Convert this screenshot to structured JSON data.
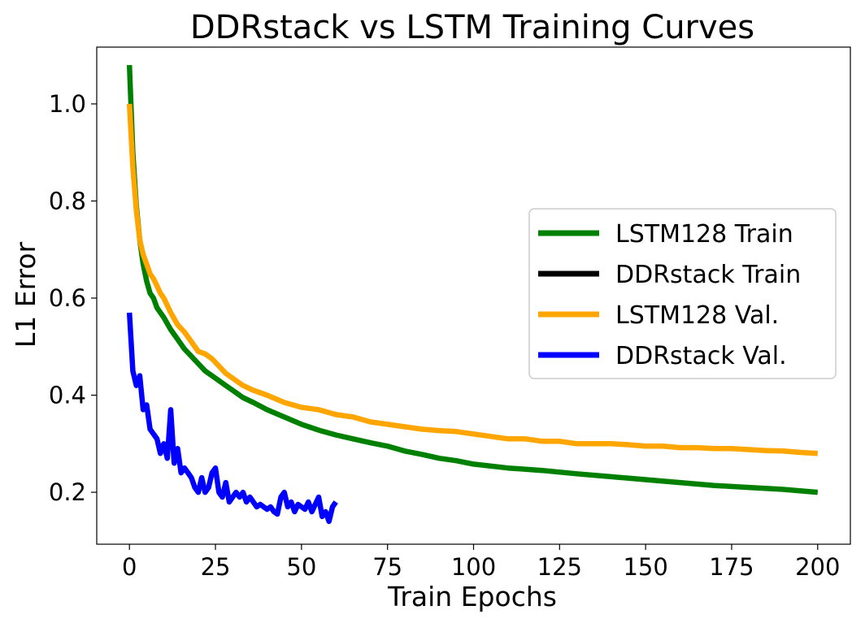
{
  "chart_data": {
    "type": "line",
    "title": "DDRstack vs LSTM Training Curves",
    "xlabel": "Train Epochs",
    "ylabel": "L1 Error",
    "xlim": [
      -9.5,
      209.5
    ],
    "ylim": [
      0.093,
      1.117
    ],
    "xticks": [
      0,
      25,
      50,
      75,
      100,
      125,
      150,
      175,
      200
    ],
    "yticks": [
      0.2,
      0.4,
      0.6,
      0.8,
      1.0
    ],
    "xtick_labels": [
      "0",
      "25",
      "50",
      "75",
      "100",
      "125",
      "150",
      "175",
      "200"
    ],
    "ytick_labels": [
      "0.2",
      "0.4",
      "0.6",
      "0.8",
      "1.0"
    ],
    "legend_position": "center-right",
    "series": [
      {
        "name": "LSTM128 Train",
        "color": "#008000",
        "x": [
          0,
          1,
          2,
          3,
          4,
          5,
          6,
          7,
          8,
          9,
          10,
          12,
          14,
          16,
          18,
          20,
          22,
          24,
          26,
          28,
          30,
          33,
          36,
          40,
          45,
          50,
          55,
          60,
          65,
          70,
          75,
          80,
          85,
          90,
          95,
          100,
          110,
          120,
          130,
          140,
          150,
          160,
          170,
          180,
          190,
          200
        ],
        "y": [
          1.08,
          0.9,
          0.79,
          0.72,
          0.67,
          0.635,
          0.61,
          0.6,
          0.58,
          0.57,
          0.56,
          0.535,
          0.515,
          0.495,
          0.48,
          0.465,
          0.45,
          0.44,
          0.43,
          0.42,
          0.41,
          0.395,
          0.385,
          0.37,
          0.355,
          0.34,
          0.328,
          0.318,
          0.31,
          0.302,
          0.295,
          0.285,
          0.278,
          0.27,
          0.265,
          0.258,
          0.25,
          0.245,
          0.238,
          0.232,
          0.226,
          0.22,
          0.214,
          0.21,
          0.206,
          0.2
        ]
      },
      {
        "name": "DDRstack Train",
        "color": "#000000",
        "x": [],
        "y": []
      },
      {
        "name": "LSTM128 Val.",
        "color": "#FFA500",
        "x": [
          0,
          1,
          2,
          3,
          4,
          5,
          6,
          7,
          8,
          9,
          10,
          12,
          14,
          16,
          18,
          20,
          22,
          24,
          26,
          28,
          30,
          33,
          36,
          40,
          45,
          50,
          55,
          60,
          65,
          70,
          75,
          80,
          85,
          90,
          95,
          100,
          105,
          110,
          115,
          120,
          125,
          130,
          135,
          140,
          145,
          150,
          155,
          160,
          165,
          170,
          175,
          180,
          185,
          190,
          195,
          200
        ],
        "y": [
          1.0,
          0.87,
          0.78,
          0.72,
          0.69,
          0.67,
          0.65,
          0.64,
          0.625,
          0.61,
          0.6,
          0.57,
          0.545,
          0.53,
          0.51,
          0.49,
          0.485,
          0.475,
          0.46,
          0.445,
          0.435,
          0.42,
          0.41,
          0.4,
          0.385,
          0.375,
          0.37,
          0.36,
          0.355,
          0.345,
          0.34,
          0.335,
          0.33,
          0.327,
          0.325,
          0.32,
          0.315,
          0.31,
          0.31,
          0.305,
          0.305,
          0.3,
          0.3,
          0.3,
          0.298,
          0.295,
          0.295,
          0.292,
          0.292,
          0.29,
          0.29,
          0.288,
          0.286,
          0.285,
          0.282,
          0.28
        ]
      },
      {
        "name": "DDRstack Val.",
        "color": "#0000FF",
        "x": [
          0,
          1,
          2,
          3,
          4,
          5,
          6,
          7,
          8,
          9,
          10,
          11,
          12,
          13,
          14,
          15,
          16,
          17,
          18,
          19,
          20,
          21,
          22,
          23,
          24,
          25,
          26,
          27,
          28,
          29,
          30,
          31,
          32,
          33,
          34,
          35,
          36,
          37,
          38,
          39,
          40,
          41,
          42,
          43,
          44,
          45,
          46,
          47,
          48,
          49,
          50,
          51,
          52,
          53,
          54,
          55,
          56,
          57,
          58,
          59,
          60
        ],
        "y": [
          0.57,
          0.45,
          0.42,
          0.44,
          0.37,
          0.38,
          0.33,
          0.32,
          0.31,
          0.28,
          0.3,
          0.27,
          0.37,
          0.26,
          0.29,
          0.24,
          0.25,
          0.24,
          0.23,
          0.21,
          0.2,
          0.23,
          0.2,
          0.21,
          0.24,
          0.25,
          0.2,
          0.19,
          0.22,
          0.18,
          0.19,
          0.2,
          0.19,
          0.2,
          0.18,
          0.19,
          0.18,
          0.17,
          0.175,
          0.17,
          0.165,
          0.17,
          0.16,
          0.155,
          0.19,
          0.2,
          0.17,
          0.18,
          0.16,
          0.175,
          0.17,
          0.165,
          0.18,
          0.16,
          0.175,
          0.19,
          0.15,
          0.16,
          0.14,
          0.17,
          0.18
        ]
      }
    ]
  }
}
